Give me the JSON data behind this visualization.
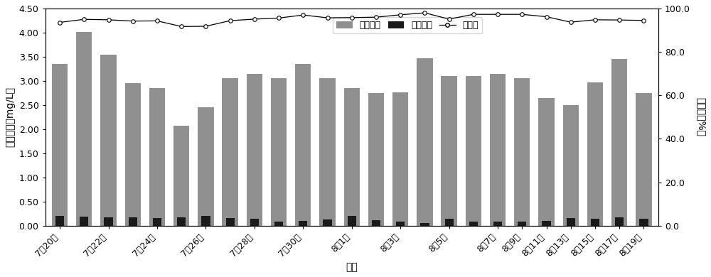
{
  "influent_tp": [
    3.35,
    4.01,
    3.55,
    2.95,
    2.85,
    2.07,
    2.45,
    3.05,
    3.15,
    3.05,
    3.35,
    3.05,
    2.85,
    2.75,
    2.77,
    3.47,
    3.1,
    3.1,
    3.15,
    3.05,
    2.65,
    2.5,
    2.97,
    3.45,
    2.75
  ],
  "effluent_tp": [
    0.2,
    0.19,
    0.18,
    0.17,
    0.16,
    0.17,
    0.2,
    0.16,
    0.15,
    0.09,
    0.1,
    0.13,
    0.2,
    0.11,
    0.08,
    0.06,
    0.15,
    0.08,
    0.08,
    0.08,
    0.1,
    0.16,
    0.15,
    0.18,
    0.15
  ],
  "removal_rate": [
    93.6,
    95.0,
    94.8,
    94.2,
    94.3,
    91.7,
    91.8,
    94.4,
    95.1,
    95.6,
    97.0,
    95.7,
    95.8,
    96.0,
    97.1,
    98.0,
    95.1,
    97.3,
    97.3,
    97.3,
    96.2,
    93.7,
    94.8,
    94.7,
    94.5
  ],
  "x_labels": [
    "7月20日",
    "7月22日",
    "7月24日",
    "7月26日",
    "7月28日",
    "7月30日",
    "8月1日",
    "8月3日",
    "8月5日",
    "8月7日",
    "8月9日",
    "8月11日",
    "8月13日",
    "8月15日",
    "8月17日",
    "8月19日"
  ],
  "tick_positions": [
    0,
    2,
    4,
    6,
    8,
    10,
    12,
    14,
    16,
    18,
    19,
    20,
    21,
    22,
    23,
    24
  ],
  "y_left_label": "总磷浓度（mg/L）",
  "y_right_label": "去除率（%）",
  "x_label": "日期",
  "bar_color_influent": "#909090",
  "bar_color_effluent": "#1a1a1a",
  "line_color": "#000000",
  "ylim_left": [
    0,
    4.5
  ],
  "ylim_right": [
    0,
    100.0
  ],
  "yticks_left": [
    0.0,
    0.5,
    1.0,
    1.5,
    2.0,
    2.5,
    3.0,
    3.5,
    4.0,
    4.5
  ],
  "yticks_right": [
    0.0,
    20.0,
    40.0,
    60.0,
    80.0,
    100.0
  ],
  "legend_label_influent": "进水总磷",
  "legend_label_effluent": "出水总磷",
  "legend_label_removal": "去除率"
}
